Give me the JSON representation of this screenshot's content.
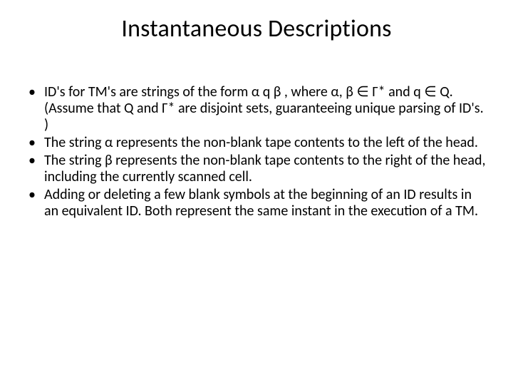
{
  "colors": {
    "background": "#ffffff",
    "text": "#000000"
  },
  "typography": {
    "title_fontsize": 34,
    "body_fontsize": 20,
    "font_family": "Calibri"
  },
  "title": "Instantaneous Descriptions",
  "bullets_group1": [
    "ID's for TM's are strings of the form  α q β , where  α, β ∈ Γ* and q ∈ Q. (Assume that Q and  Γ* are disjoint sets, guaranteeing unique parsing of ID's. )",
    "The string  α  represents the non-blank tape contents to the left of the head.",
    "The string  β  represents the non-blank tape contents to the right of the head, including the  currently scanned cell."
  ],
  "bullets_group2": [
    "Adding or deleting a few blank symbols at the beginning of an ID results in an equivalent ID. Both represent the same instant in the execution of a TM."
  ]
}
